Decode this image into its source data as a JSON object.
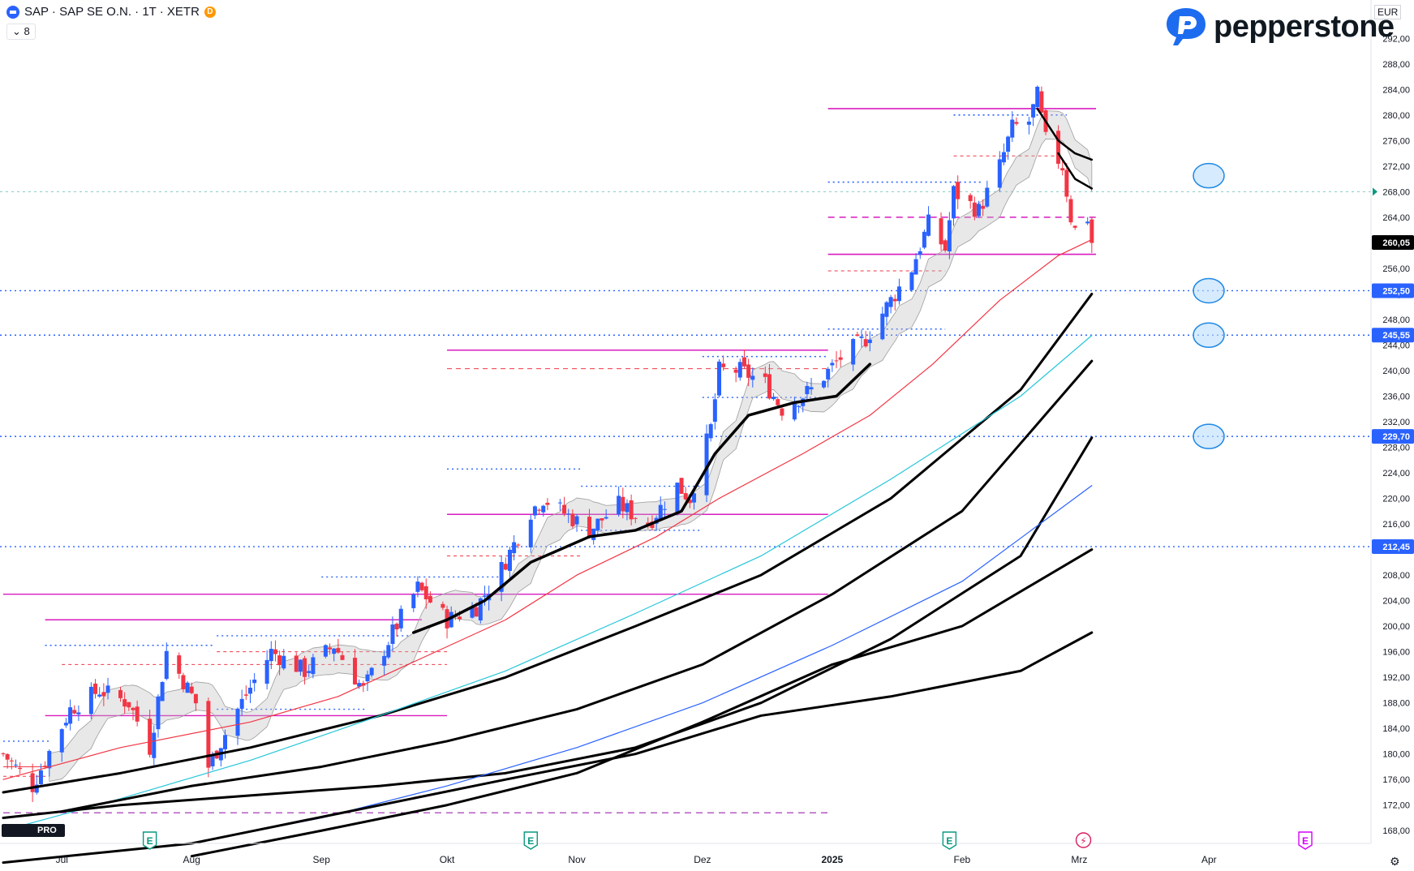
{
  "header": {
    "symbol_line": "SAP · SAP SE O.N. · 1T · XETR",
    "badge": "D",
    "indicator_toggle": "8"
  },
  "brand": {
    "name": "pepperstone"
  },
  "currency": "EUR",
  "tv_logo": "PRO",
  "colors": {
    "up": "#2962ff",
    "down": "#f23645",
    "magenta": "#d81bbf",
    "black_ma": "#000000",
    "red_ma": "#f23645",
    "cyan_ma": "#26c6da",
    "blue_ma": "#2962ff",
    "band": "#bdbdbd"
  },
  "chart_data": {
    "type": "candlestick",
    "title": "",
    "y_axis": {
      "min": 166,
      "max": 298,
      "ticks": [
        168,
        172,
        176,
        180,
        184,
        188,
        192,
        196,
        200,
        204,
        208,
        212,
        216,
        220,
        224,
        228,
        232,
        236,
        240,
        244,
        248,
        252,
        256,
        260,
        264,
        268,
        272,
        276,
        280,
        284,
        288,
        292
      ],
      "tick_labels": [
        "168,00",
        "172,00",
        "176,00",
        "180,00",
        "184,00",
        "188,00",
        "192,00",
        "196,00",
        "200,00",
        "204,00",
        "208,00",
        "212,00",
        "216,00",
        "220,00",
        "224,00",
        "228,00",
        "232,00",
        "236,00",
        "240,00",
        "244,00",
        "248,00",
        "252,00",
        "256,00",
        "260,00",
        "264,00",
        "268,00",
        "272,00",
        "276,00",
        "280,00",
        "284,00",
        "288,00",
        "292,00"
      ],
      "position": "right"
    },
    "x_axis": {
      "first_date": "2024-06-17",
      "last_date": "2025-04-30",
      "labels": [
        {
          "date": "2024-07-01",
          "text": "Jul"
        },
        {
          "date": "2024-08-01",
          "text": "Aug"
        },
        {
          "date": "2024-09-01",
          "text": "Sep"
        },
        {
          "date": "2024-10-01",
          "text": "Okt"
        },
        {
          "date": "2024-11-01",
          "text": "Nov"
        },
        {
          "date": "2024-12-01",
          "text": "Dez"
        },
        {
          "date": "2025-01-01",
          "text": "2025"
        },
        {
          "date": "2025-02-01",
          "text": "Feb"
        },
        {
          "date": "2025-03-01",
          "text": "Mrz"
        },
        {
          "date": "2025-04-01",
          "text": "Apr"
        }
      ],
      "event_markers": [
        {
          "date": "2024-07-22",
          "text": "E"
        },
        {
          "date": "2024-10-21",
          "text": "E"
        },
        {
          "date": "2025-01-29",
          "text": "E"
        },
        {
          "date": "2025-03-02",
          "text": "⚡"
        },
        {
          "date": "2025-04-24",
          "text": "E"
        }
      ]
    },
    "price_labels": [
      {
        "value": 260.05,
        "text": "260,05",
        "color": "#000000"
      },
      {
        "value": 252.5,
        "text": "252,50",
        "color": "#2962ff"
      },
      {
        "value": 245.55,
        "text": "245,55",
        "color": "#2962ff"
      },
      {
        "value": 229.7,
        "text": "229,70",
        "color": "#2962ff"
      },
      {
        "value": 212.45,
        "text": "212,45",
        "color": "#2962ff"
      }
    ],
    "last_close_marker": 268.0,
    "horizontal_levels": [
      {
        "value": 252.5,
        "style": "dotted",
        "color": "#2962ff"
      },
      {
        "value": 245.55,
        "style": "dotted",
        "color": "#2962ff"
      },
      {
        "value": 229.7,
        "style": "dotted",
        "color": "#2962ff"
      },
      {
        "value": 212.45,
        "style": "dotted",
        "color": "#2962ff"
      }
    ],
    "key_points": [
      {
        "date": "2024-06-17",
        "close": 180
      },
      {
        "date": "2024-06-24",
        "close": 175
      },
      {
        "date": "2024-07-03",
        "close": 187
      },
      {
        "date": "2024-07-10",
        "close": 190
      },
      {
        "date": "2024-07-17",
        "close": 188
      },
      {
        "date": "2024-07-22",
        "close": 181
      },
      {
        "date": "2024-07-26",
        "close": 196
      },
      {
        "date": "2024-08-02",
        "close": 188
      },
      {
        "date": "2024-08-05",
        "close": 178
      },
      {
        "date": "2024-08-12",
        "close": 187
      },
      {
        "date": "2024-08-20",
        "close": 196
      },
      {
        "date": "2024-08-28",
        "close": 193
      },
      {
        "date": "2024-09-04",
        "close": 197
      },
      {
        "date": "2024-09-11",
        "close": 190
      },
      {
        "date": "2024-09-18",
        "close": 199
      },
      {
        "date": "2024-09-24",
        "close": 206
      },
      {
        "date": "2024-10-01",
        "close": 201
      },
      {
        "date": "2024-10-08",
        "close": 203
      },
      {
        "date": "2024-10-14",
        "close": 209
      },
      {
        "date": "2024-10-21",
        "close": 218
      },
      {
        "date": "2024-10-24",
        "close": 220
      },
      {
        "date": "2024-11-04",
        "close": 215
      },
      {
        "date": "2024-11-11",
        "close": 219
      },
      {
        "date": "2024-11-18",
        "close": 216
      },
      {
        "date": "2024-11-25",
        "close": 222
      },
      {
        "date": "2024-11-28",
        "close": 220
      },
      {
        "date": "2024-12-03",
        "close": 231
      },
      {
        "date": "2024-12-05",
        "close": 240
      },
      {
        "date": "2024-12-10",
        "close": 240
      },
      {
        "date": "2024-12-16",
        "close": 238
      },
      {
        "date": "2024-12-20",
        "close": 234
      },
      {
        "date": "2024-12-27",
        "close": 237
      },
      {
        "date": "2025-01-03",
        "close": 242
      },
      {
        "date": "2025-01-09",
        "close": 245
      },
      {
        "date": "2025-01-15",
        "close": 251
      },
      {
        "date": "2025-01-20",
        "close": 256
      },
      {
        "date": "2025-01-24",
        "close": 263
      },
      {
        "date": "2025-01-28",
        "close": 259
      },
      {
        "date": "2025-01-30",
        "close": 268
      },
      {
        "date": "2025-02-05",
        "close": 265
      },
      {
        "date": "2025-02-10",
        "close": 272
      },
      {
        "date": "2025-02-13",
        "close": 278
      },
      {
        "date": "2025-02-17",
        "close": 279
      },
      {
        "date": "2025-02-19",
        "close": 283
      },
      {
        "date": "2025-02-21",
        "close": 276
      },
      {
        "date": "2025-02-25",
        "close": 272
      },
      {
        "date": "2025-02-27",
        "close": 264
      },
      {
        "date": "2025-02-28",
        "close": 262
      },
      {
        "date": "2025-03-03",
        "close": 264
      },
      {
        "date": "2025-03-04",
        "close": 260.05
      }
    ],
    "series": [
      {
        "name": "",
        "kind": "ma",
        "color": "#000000",
        "width": 3.5,
        "points": [
          [
            "2024-09-23",
            199
          ],
          [
            "2024-10-01",
            201
          ],
          [
            "2024-10-10",
            204
          ],
          [
            "2024-10-21",
            210
          ],
          [
            "2024-11-04",
            214
          ],
          [
            "2024-11-15",
            215
          ],
          [
            "2024-11-26",
            218
          ],
          [
            "2024-12-04",
            227
          ],
          [
            "2024-12-12",
            233
          ],
          [
            "2024-12-23",
            235
          ],
          [
            "2025-01-02",
            236
          ],
          [
            "2025-01-10",
            241
          ]
        ]
      },
      {
        "name": "",
        "kind": "ma",
        "color": "#000000",
        "width": 2.5,
        "points": [
          [
            "2025-02-19",
            281
          ],
          [
            "2025-02-24",
            276
          ],
          [
            "2025-02-28",
            274
          ],
          [
            "2025-03-04",
            273
          ]
        ]
      },
      {
        "name": "",
        "kind": "ma",
        "color": "#000000",
        "width": 2.5,
        "points": [
          [
            "2025-02-24",
            274
          ],
          [
            "2025-02-28",
            270
          ],
          [
            "2025-03-04",
            268.5
          ]
        ]
      },
      {
        "name": "",
        "kind": "ma",
        "color": "#f23645",
        "width": 1.2,
        "points": [
          [
            "2024-06-17",
            176
          ],
          [
            "2024-07-15",
            181
          ],
          [
            "2024-08-15",
            185
          ],
          [
            "2024-09-05",
            189
          ],
          [
            "2024-09-25",
            195
          ],
          [
            "2024-10-15",
            201
          ],
          [
            "2024-11-01",
            208
          ],
          [
            "2024-11-20",
            214
          ],
          [
            "2024-12-05",
            220
          ],
          [
            "2024-12-25",
            227
          ],
          [
            "2025-01-10",
            233
          ],
          [
            "2025-01-25",
            241
          ],
          [
            "2025-02-10",
            251
          ],
          [
            "2025-02-24",
            258
          ],
          [
            "2025-03-04",
            260.5
          ]
        ]
      },
      {
        "name": "",
        "kind": "ma",
        "color": "#000000",
        "width": 3,
        "points": [
          [
            "2024-06-17",
            174
          ],
          [
            "2024-07-15",
            177
          ],
          [
            "2024-08-15",
            181
          ],
          [
            "2024-09-15",
            186
          ],
          [
            "2024-10-15",
            192
          ],
          [
            "2024-11-15",
            200
          ],
          [
            "2024-12-15",
            208
          ],
          [
            "2025-01-15",
            220
          ],
          [
            "2025-02-15",
            237
          ],
          [
            "2025-03-04",
            252
          ]
        ]
      },
      {
        "name": "",
        "kind": "ma",
        "color": "#26c6da",
        "width": 1.2,
        "points": [
          [
            "2024-06-17",
            168
          ],
          [
            "2024-07-15",
            173
          ],
          [
            "2024-08-15",
            179
          ],
          [
            "2024-09-15",
            186
          ],
          [
            "2024-10-15",
            193
          ],
          [
            "2024-11-15",
            202
          ],
          [
            "2024-12-15",
            211
          ],
          [
            "2025-01-15",
            223
          ],
          [
            "2025-02-15",
            236
          ],
          [
            "2025-03-04",
            245.5
          ]
        ]
      },
      {
        "name": "",
        "kind": "ma",
        "color": "#000000",
        "width": 3,
        "points": [
          [
            "2024-07-01",
            171
          ],
          [
            "2024-08-01",
            175
          ],
          [
            "2024-09-01",
            178
          ],
          [
            "2024-10-01",
            182
          ],
          [
            "2024-11-01",
            187
          ],
          [
            "2024-12-01",
            194
          ],
          [
            "2025-01-01",
            205
          ],
          [
            "2025-02-01",
            218
          ],
          [
            "2025-03-04",
            241.5
          ]
        ]
      },
      {
        "name": "",
        "kind": "ma",
        "color": "#000000",
        "width": 3,
        "points": [
          [
            "2024-06-17",
            170
          ],
          [
            "2024-07-15",
            172
          ],
          [
            "2024-08-15",
            173.5
          ],
          [
            "2024-09-15",
            175
          ],
          [
            "2024-10-15",
            177
          ],
          [
            "2024-11-15",
            181
          ],
          [
            "2024-12-15",
            188
          ],
          [
            "2025-01-15",
            198
          ],
          [
            "2025-02-15",
            211
          ],
          [
            "2025-03-04",
            229.5
          ]
        ]
      },
      {
        "name": "",
        "kind": "ma",
        "color": "#2962ff",
        "width": 1.2,
        "points": [
          [
            "2024-08-01",
            166
          ],
          [
            "2024-09-01",
            170
          ],
          [
            "2024-10-01",
            175
          ],
          [
            "2024-11-01",
            181
          ],
          [
            "2024-12-01",
            188
          ],
          [
            "2025-01-01",
            197
          ],
          [
            "2025-02-01",
            207
          ],
          [
            "2025-03-04",
            222
          ]
        ]
      },
      {
        "name": "",
        "kind": "ma",
        "color": "#000000",
        "width": 3,
        "points": [
          [
            "2024-08-01",
            164
          ],
          [
            "2024-09-01",
            168
          ],
          [
            "2024-10-01",
            172
          ],
          [
            "2024-11-01",
            177
          ],
          [
            "2024-12-01",
            185
          ],
          [
            "2025-01-01",
            194
          ],
          [
            "2025-02-01",
            200
          ],
          [
            "2025-03-04",
            212
          ]
        ]
      },
      {
        "name": "",
        "kind": "ma",
        "color": "#000000",
        "width": 3,
        "points": [
          [
            "2024-06-17",
            163
          ],
          [
            "2024-08-01",
            166
          ],
          [
            "2024-09-15",
            172
          ],
          [
            "2024-10-15",
            176
          ],
          [
            "2024-11-15",
            180
          ],
          [
            "2024-12-15",
            186
          ],
          [
            "2025-01-15",
            189
          ],
          [
            "2025-02-15",
            193
          ],
          [
            "2025-03-04",
            199
          ]
        ]
      }
    ]
  }
}
